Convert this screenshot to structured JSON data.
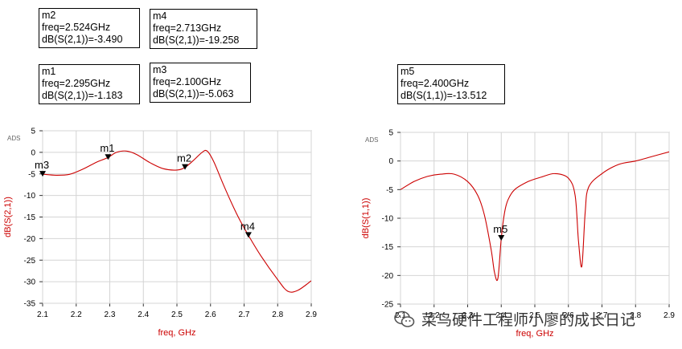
{
  "markers": [
    {
      "name": "m2",
      "freq_line": "freq=2.524GHz",
      "value_line": "dB(S(2,1))=-3.490"
    },
    {
      "name": "m4",
      "freq_line": "freq=2.713GHz",
      "value_line": "dB(S(2,1))=-19.258"
    },
    {
      "name": "m1",
      "freq_line": "freq=2.295GHz",
      "value_line": "dB(S(2,1))=-1.183"
    },
    {
      "name": "m3",
      "freq_line": "freq=2.100GHz",
      "value_line": "dB(S(2,1))=-5.063"
    },
    {
      "name": "m5",
      "freq_line": "freq=2.400GHz",
      "value_line": "dB(S(1,1))=-13.512"
    }
  ],
  "watermark": {
    "text": "菜鸟硬件工程师小廖的成长日记",
    "icon": "wechat-icon"
  },
  "chart_data": [
    {
      "type": "line",
      "tag": "ADS",
      "xlabel": "freq, GHz",
      "ylabel": "dB(S(2,1))",
      "xlim": [
        2.1,
        2.9
      ],
      "ylim": [
        -35,
        5
      ],
      "x_ticks": [
        "2.1",
        "2.2",
        "2.3",
        "2.4",
        "2.5",
        "2.6",
        "2.7",
        "2.8",
        "2.9"
      ],
      "y_ticks": [
        "5",
        "0",
        "-5",
        "-10",
        "-15",
        "-20",
        "-25",
        "-30",
        "-35"
      ],
      "grid": true,
      "line_color": "#cc0000",
      "series": [
        {
          "x": [
            2.1,
            2.14,
            2.18,
            2.22,
            2.26,
            2.295,
            2.32,
            2.35,
            2.38,
            2.42,
            2.46,
            2.5,
            2.524,
            2.55,
            2.575,
            2.59,
            2.61,
            2.64,
            2.68,
            2.713,
            2.75,
            2.8,
            2.83,
            2.86,
            2.9
          ],
          "y": [
            -5.06,
            -5.3,
            -5.1,
            -3.9,
            -2.3,
            -1.18,
            0.0,
            0.3,
            -0.5,
            -2.4,
            -3.8,
            -4.1,
            -3.49,
            -1.8,
            0.0,
            0.3,
            -2.2,
            -7.8,
            -14.6,
            -19.26,
            -24.0,
            -29.5,
            -32.2,
            -32.0,
            -29.8
          ]
        }
      ],
      "markers": [
        {
          "label": "m1",
          "x": 2.295,
          "y": -1.183
        },
        {
          "label": "m2",
          "x": 2.524,
          "y": -3.49
        },
        {
          "label": "m3",
          "x": 2.1,
          "y": -5.063
        },
        {
          "label": "m4",
          "x": 2.713,
          "y": -19.258
        }
      ]
    },
    {
      "type": "line",
      "tag": "ADS",
      "xlabel": "freq, GHz",
      "ylabel": "dB(S(1,1))",
      "xlim": [
        2.1,
        2.9
      ],
      "ylim": [
        -25,
        5
      ],
      "x_ticks": [
        "2.1",
        "2.2",
        "2.3",
        "2.4",
        "2.5",
        "2.6",
        "2.7",
        "2.8",
        "2.9"
      ],
      "y_ticks": [
        "5",
        "0",
        "-5",
        "-10",
        "-15",
        "-20",
        "-25"
      ],
      "grid": true,
      "line_color": "#cc0000",
      "series": [
        {
          "x": [
            2.1,
            2.14,
            2.18,
            2.22,
            2.26,
            2.3,
            2.33,
            2.35,
            2.37,
            2.38,
            2.39,
            2.4,
            2.41,
            2.42,
            2.44,
            2.48,
            2.52,
            2.56,
            2.6,
            2.62,
            2.63,
            2.64,
            2.65,
            2.66,
            2.7,
            2.75,
            2.8,
            2.85,
            2.9
          ],
          "y": [
            -5.0,
            -3.6,
            -2.7,
            -2.3,
            -2.3,
            -3.6,
            -6.0,
            -9.5,
            -15.5,
            -19.5,
            -20.5,
            -13.5,
            -9.0,
            -6.8,
            -5.0,
            -3.6,
            -2.8,
            -2.2,
            -3.0,
            -6.0,
            -14.0,
            -18.4,
            -9.0,
            -4.6,
            -2.2,
            -0.6,
            0.0,
            0.8,
            1.6
          ]
        }
      ],
      "markers": [
        {
          "label": "m5",
          "x": 2.4,
          "y": -13.512
        }
      ]
    }
  ]
}
